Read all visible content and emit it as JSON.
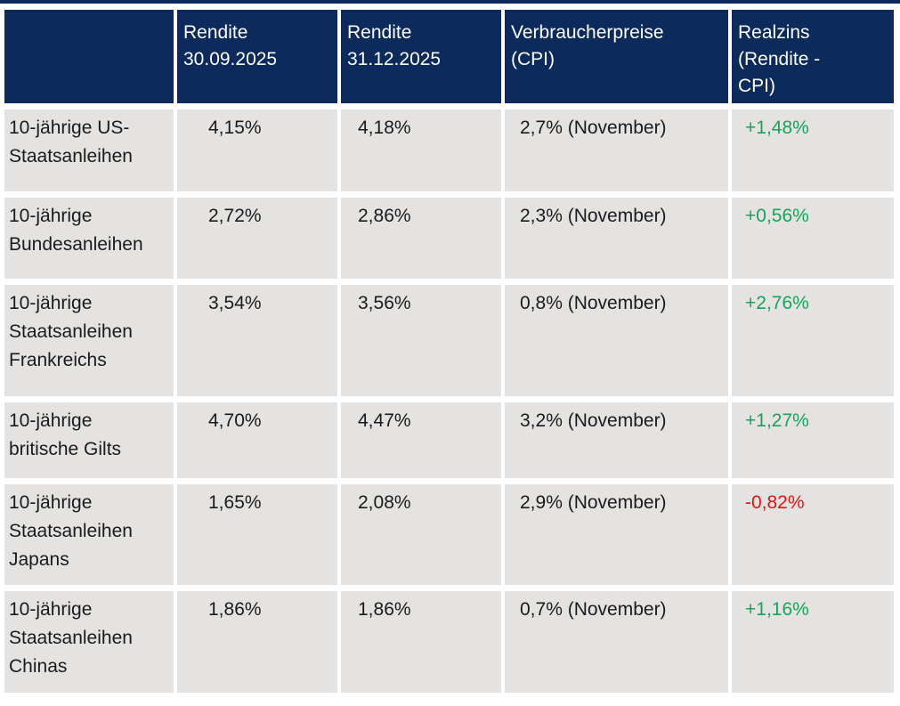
{
  "theme": {
    "header_bg": "#0c2a5c",
    "row_bg": "#e4e3e1",
    "header_text_color": "#ffffff",
    "body_text_color": "#1b1b1b",
    "positive_color": "#17a35c",
    "negative_color": "#de1511"
  },
  "table": {
    "columns": [
      {
        "lines": []
      },
      {
        "lines": [
          "Rendite",
          "30.09.2025"
        ]
      },
      {
        "lines": [
          "Rendite",
          "31.12.2025"
        ]
      },
      {
        "lines": [
          "Verbraucherpreise",
          "(CPI)"
        ]
      },
      {
        "lines": [
          "Realzins",
          "(Rendite -",
          "CPI)"
        ]
      }
    ],
    "rows": [
      {
        "name": "10-jährige US-Staatsanleihen",
        "rendite_sep": "4,15%",
        "rendite_dez": "4,18%",
        "cpi": "2,7% (November)",
        "realzins": "+1,48%",
        "realzins_sign": "positive"
      },
      {
        "name": "10-jährige Bundesanleihen",
        "rendite_sep": "2,72%",
        "rendite_dez": "2,86%",
        "cpi": "2,3% (November)",
        "realzins": "+0,56%",
        "realzins_sign": "positive"
      },
      {
        "name": "10-jährige Staatsanleihen Frankreichs",
        "rendite_sep": "3,54%",
        "rendite_dez": "3,56%",
        "cpi": "0,8% (November)",
        "realzins": "+2,76%",
        "realzins_sign": "positive"
      },
      {
        "name": "10-jährige britische Gilts",
        "rendite_sep": "4,70%",
        "rendite_dez": "4,47%",
        "cpi": "3,2% (November)",
        "realzins": "+1,27%",
        "realzins_sign": "positive"
      },
      {
        "name": "10-jährige Staatsanleihen Japans",
        "rendite_sep": "1,65%",
        "rendite_dez": "2,08%",
        "cpi": "2,9% (November)",
        "realzins": "-0,82%",
        "realzins_sign": "negative"
      },
      {
        "name": "10-jährige Staatsanleihen Chinas",
        "rendite_sep": "1,86%",
        "rendite_dez": "1,86%",
        "cpi": "0,7% (November)",
        "realzins": "+1,16%",
        "realzins_sign": "positive"
      }
    ]
  },
  "chart_data": {
    "type": "table",
    "columns": [
      "",
      "Rendite 30.09.2025",
      "Rendite 31.12.2025",
      "Verbraucherpreise (CPI)",
      "Realzins (Rendite - CPI)"
    ],
    "rows": [
      [
        "10-jährige US-Staatsanleihen",
        "4,15%",
        "4,18%",
        "2,7% (November)",
        "+1,48%"
      ],
      [
        "10-jährige Bundesanleihen",
        "2,72%",
        "2,86%",
        "2,3% (November)",
        "+0,56%"
      ],
      [
        "10-jährige Staatsanleihen Frankreichs",
        "3,54%",
        "3,56%",
        "0,8% (November)",
        "+2,76%"
      ],
      [
        "10-jährige britische Gilts",
        "4,70%",
        "4,47%",
        "3,2% (November)",
        "+1,27%"
      ],
      [
        "10-jährige Staatsanleihen Japans",
        "1,65%",
        "2,08%",
        "2,9% (November)",
        "-0,82%"
      ],
      [
        "10-jährige Staatsanleihen Chinas",
        "1,86%",
        "1,86%",
        "0,7% (November)",
        "+1,16%"
      ]
    ]
  }
}
